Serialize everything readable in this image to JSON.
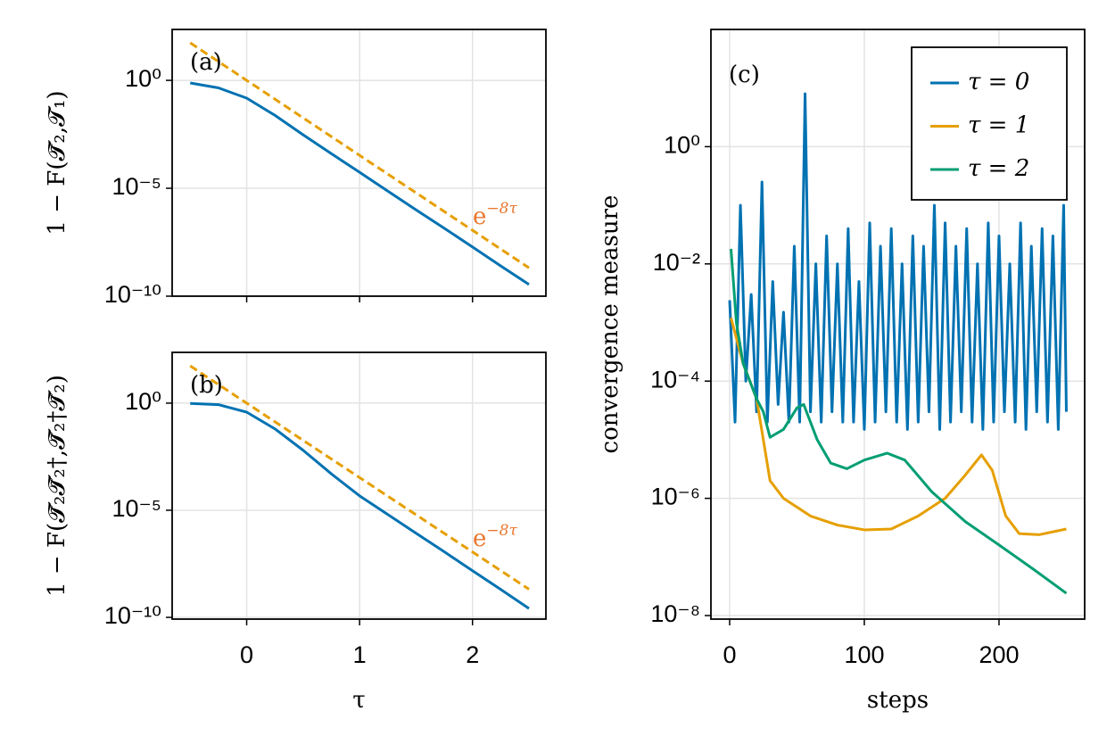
{
  "chart_data": [
    {
      "type": "line",
      "log_y": true,
      "grid": true,
      "panel_label": "(a)",
      "y_label": "1 − F(𝓣̃₂,𝓣₁)",
      "x": [
        -0.5,
        -0.25,
        0,
        0.25,
        0.5,
        0.75,
        1,
        1.25,
        1.5,
        1.75,
        2,
        2.25,
        2.5
      ],
      "series": [
        {
          "color": "#0072b2",
          "values": [
            0.76,
            0.45,
            0.15,
            0.024,
            0.003,
            0.0004,
            5.5e-05,
            7.4e-06,
            1e-06,
            1.4e-07,
            1.9e-08,
            2.5e-09,
            3.5e-10
          ]
        },
        {
          "color": "#e69f00",
          "dashed": true,
          "values": [
            54.6,
            7.39,
            1,
            0.135,
            0.0183,
            0.00248,
            0.000335,
            4.54e-05,
            6.14e-06,
            8.32e-07,
            1.13e-07,
            1.52e-08,
            2.06e-09
          ]
        }
      ],
      "annotation": {
        "text": "e",
        "sup": "−8τ",
        "color": "#e8772e"
      },
      "xlim": [
        -0.66,
        2.65
      ],
      "xticks": [
        0,
        1,
        2
      ],
      "xtick_labels": false,
      "ylim": [
        1e-10,
        229
      ],
      "yticks": [
        {
          "value": 1,
          "label": "10⁰"
        },
        {
          "value": 1e-05,
          "label": "10⁻⁵"
        },
        {
          "value": 1e-10,
          "label": "10⁻¹⁰"
        }
      ]
    },
    {
      "type": "line",
      "log_y": true,
      "grid": true,
      "panel_label": "(b)",
      "y_label": "1 − F(𝓣̃₂𝓣̃₂†,𝓣̃₂†𝓣̃₂)",
      "x_label": "τ",
      "x": [
        -0.5,
        -0.25,
        0,
        0.25,
        0.5,
        0.75,
        1,
        1.25,
        1.5,
        1.75,
        2,
        2.25,
        2.5
      ],
      "series": [
        {
          "color": "#0072b2",
          "values": [
            0.97,
            0.85,
            0.38,
            0.063,
            0.0063,
            0.0005,
            4.7e-05,
            6.3e-06,
            8.5e-07,
            1.15e-07,
            1.5e-08,
            2e-09,
            2.6e-10
          ]
        },
        {
          "color": "#e69f00",
          "dashed": true,
          "values": [
            54.6,
            7.39,
            1,
            0.135,
            0.0183,
            0.00248,
            0.000335,
            4.54e-05,
            6.14e-06,
            8.32e-07,
            1.13e-07,
            1.52e-08,
            2.06e-09
          ]
        }
      ],
      "annotation": {
        "text": "e",
        "sup": "−8τ",
        "color": "#e8772e"
      },
      "xlim": [
        -0.66,
        2.65
      ],
      "xticks": [
        0,
        1,
        2
      ],
      "xtick_labels": true,
      "ylim": [
        8.3e-11,
        234
      ],
      "yticks": [
        {
          "value": 1,
          "label": "10⁰"
        },
        {
          "value": 1e-05,
          "label": "10⁻⁵"
        },
        {
          "value": 1e-10,
          "label": "10⁻¹⁰"
        }
      ]
    },
    {
      "type": "line",
      "log_y": true,
      "grid": true,
      "panel_label": "(c)",
      "y_label": "convergence measure",
      "x_label": "steps",
      "legend": "top-right",
      "series": [
        {
          "name": "τ = 0",
          "color": "#0072b2",
          "x": [
            0,
            4,
            8,
            12,
            16,
            20,
            24,
            28,
            32,
            36,
            40,
            44,
            48,
            52,
            56,
            60,
            64,
            68,
            72,
            76,
            80,
            84,
            88,
            92,
            96,
            100,
            104,
            108,
            112,
            116,
            120,
            124,
            128,
            132,
            136,
            140,
            144,
            148,
            152,
            156,
            160,
            164,
            168,
            172,
            176,
            180,
            184,
            188,
            192,
            196,
            200,
            204,
            208,
            212,
            216,
            220,
            224,
            228,
            232,
            236,
            240,
            244,
            248,
            250
          ],
          "values": [
            0.0024,
            2e-05,
            0.1,
            0.0001,
            0.003,
            3e-05,
            0.25,
            2e-05,
            0.005,
            4e-05,
            0.0015,
            2e-05,
            0.02,
            2e-05,
            8,
            3e-05,
            0.01,
            2e-05,
            0.03,
            3e-05,
            0.01,
            2e-05,
            0.04,
            2e-05,
            0.005,
            1.5e-05,
            0.05,
            2e-05,
            0.02,
            3e-05,
            0.04,
            2e-05,
            0.01,
            1.5e-05,
            0.03,
            2e-05,
            0.02,
            3e-05,
            0.1,
            1.5e-05,
            0.05,
            2e-05,
            0.02,
            3e-05,
            0.04,
            2e-05,
            0.01,
            1.5e-05,
            0.05,
            2e-05,
            0.03,
            3e-05,
            0.01,
            2e-05,
            0.05,
            1.5e-05,
            0.02,
            3e-05,
            0.04,
            2e-05,
            0.03,
            1.5e-05,
            0.1,
            3e-05
          ]
        },
        {
          "name": "τ = 1",
          "color": "#e69f00",
          "x": [
            1,
            10,
            20,
            25,
            30,
            40,
            60,
            80,
            100,
            120,
            140,
            160,
            175,
            187,
            195,
            205,
            215,
            230,
            250
          ],
          "values": [
            0.0012,
            0.0002,
            5e-05,
            1e-05,
            2e-06,
            1e-06,
            5e-07,
            3.5e-07,
            2.9e-07,
            3e-07,
            5e-07,
            1e-06,
            2.5e-06,
            5.5e-06,
            3e-06,
            5e-07,
            2.5e-07,
            2.4e-07,
            3e-07
          ]
        },
        {
          "name": "τ = 2",
          "color": "#009e73",
          "x": [
            1,
            5,
            10,
            20,
            25,
            30,
            40,
            50,
            55,
            65,
            75,
            87,
            100,
            117,
            130,
            150,
            175,
            200,
            225,
            250
          ],
          "values": [
            0.018,
            0.001,
            0.0002,
            5e-05,
            3e-05,
            1.1e-05,
            1.5e-05,
            3.5e-05,
            4e-05,
            1e-05,
            4e-06,
            3.2e-06,
            4.5e-06,
            5.9e-06,
            4.5e-06,
            1.3e-06,
            4e-07,
            1.6e-07,
            6.3e-08,
            2.4e-08
          ]
        }
      ],
      "xlim": [
        -13.9,
        263.6
      ],
      "xticks": [
        0,
        100,
        200
      ],
      "xtick_labels": true,
      "ylim": [
        8.7e-09,
        100
      ],
      "yticks": [
        {
          "value": 1,
          "label": "10⁰"
        },
        {
          "value": 0.01,
          "label": "10⁻²"
        },
        {
          "value": 0.0001,
          "label": "10⁻⁴"
        },
        {
          "value": 1e-06,
          "label": "10⁻⁶"
        },
        {
          "value": 1e-08,
          "label": "10⁻⁸"
        }
      ]
    }
  ]
}
